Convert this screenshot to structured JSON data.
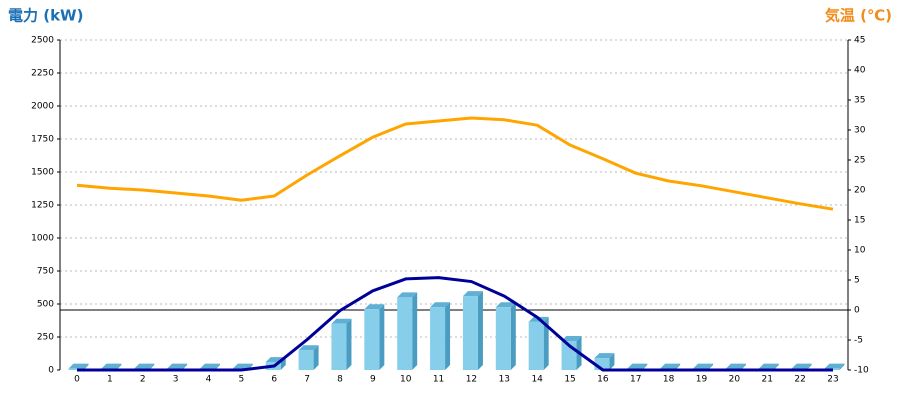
{
  "chart_data": {
    "type": "bar",
    "y_label": "電力 (kW)",
    "y2_label": "気温 (℃)",
    "categories": [
      "0",
      "1",
      "2",
      "3",
      "4",
      "5",
      "6",
      "7",
      "8",
      "9",
      "10",
      "11",
      "12",
      "13",
      "14",
      "15",
      "16",
      "17",
      "18",
      "19",
      "20",
      "21",
      "22",
      "23"
    ],
    "series": [
      {
        "type": "bar",
        "color": "#87ceeb",
        "values": [
          10,
          10,
          10,
          10,
          10,
          10,
          60,
          150,
          350,
          460,
          550,
          475,
          560,
          475,
          365,
          220,
          90,
          10,
          10,
          10,
          10,
          10,
          10,
          10
        ]
      },
      {
        "type": "line",
        "color": "#000099",
        "values": [
          0,
          0,
          0,
          0,
          0,
          0,
          30,
          230,
          450,
          600,
          690,
          700,
          670,
          560,
          400,
          180,
          0,
          0,
          0,
          0,
          0,
          0,
          0,
          0
        ]
      },
      {
        "type": "line",
        "axis": "y2",
        "color": "#ffa500",
        "values": [
          20.8,
          20.3,
          20,
          19.5,
          19,
          18.3,
          19,
          22.5,
          25.7,
          28.8,
          31,
          31.5,
          32,
          31.7,
          30.8,
          27.5,
          25.2,
          22.8,
          21.5,
          20.7,
          19.7,
          18.7,
          17.7,
          16.8
        ]
      }
    ],
    "ylim": [
      0,
      2500
    ],
    "yticks": [
      0,
      250,
      500,
      750,
      1000,
      1250,
      1500,
      1750,
      2000,
      2250,
      2500
    ],
    "y2lim": [
      -10,
      45
    ],
    "y2ticks": [
      -10,
      -5,
      0,
      5,
      10,
      15,
      20,
      25,
      30,
      35,
      40,
      45
    ],
    "grid": true
  }
}
